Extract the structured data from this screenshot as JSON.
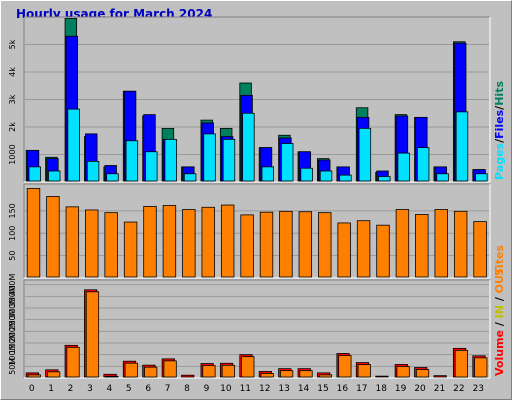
{
  "title": "Hourly usage for March 2024",
  "colors": {
    "background": "#c0c0c0",
    "plot": "#c0c0c0",
    "title": "#0000c0",
    "hits": "#00805c",
    "files": "#0000ff",
    "pages": "#00e0ff",
    "sites": "#ff8000",
    "kbin": "#c0c000",
    "kbout": "#ff8000",
    "volume": "#ff0000"
  },
  "legend": {
    "top": [
      {
        "text": "Pages",
        "color": "#00e0ff"
      },
      {
        "text": "/",
        "color": "#000000"
      },
      {
        "text": "Files",
        "color": "#0000ff"
      },
      {
        "text": "/",
        "color": "#000000"
      },
      {
        "text": "Hits",
        "color": "#00805c"
      }
    ],
    "middle": [
      {
        "text": "Sites",
        "color": "#ff8000"
      }
    ],
    "bottom": [
      {
        "text": "Volume",
        "color": "#ff0000"
      },
      {
        "text": " / ",
        "color": "#000000"
      },
      {
        "text": "IN",
        "color": "#c0c000"
      },
      {
        "text": " / ",
        "color": "#000000"
      },
      {
        "text": "OUT",
        "color": "#ff8000"
      }
    ]
  },
  "chart_data": [
    {
      "type": "bar",
      "name": "hits-files-pages",
      "categories": [
        "0",
        "1",
        "2",
        "3",
        "4",
        "5",
        "6",
        "7",
        "8",
        "9",
        "10",
        "11",
        "12",
        "13",
        "14",
        "15",
        "16",
        "17",
        "18",
        "19",
        "20",
        "21",
        "22",
        "23"
      ],
      "ylim": [
        0,
        6000
      ],
      "yticks": [
        {
          "value": 1000,
          "label": "1000"
        },
        {
          "value": 2000,
          "label": "2k"
        },
        {
          "value": 3000,
          "label": "3k"
        },
        {
          "value": 4000,
          "label": "4k"
        },
        {
          "value": 5000,
          "label": "5k"
        }
      ],
      "series": [
        {
          "name": "Hits",
          "values": [
            1150,
            900,
            5950,
            1650,
            550,
            3300,
            2400,
            1950,
            550,
            2250,
            1950,
            3600,
            1250,
            1700,
            1100,
            850,
            550,
            2700,
            350,
            2450,
            2350,
            550,
            5100,
            450
          ]
        },
        {
          "name": "Files",
          "values": [
            1150,
            850,
            5300,
            1750,
            600,
            3300,
            2450,
            1550,
            550,
            2150,
            1650,
            3150,
            1250,
            1600,
            1100,
            800,
            550,
            2350,
            400,
            2400,
            2350,
            550,
            5050,
            450
          ]
        },
        {
          "name": "Pages",
          "values": [
            550,
            400,
            2650,
            750,
            300,
            1500,
            1100,
            1550,
            300,
            1750,
            1550,
            2500,
            550,
            1400,
            500,
            400,
            250,
            1950,
            200,
            1050,
            1250,
            300,
            2550,
            300
          ]
        }
      ]
    },
    {
      "type": "bar",
      "name": "sites",
      "categories": [
        "0",
        "1",
        "2",
        "3",
        "4",
        "5",
        "6",
        "7",
        "8",
        "9",
        "10",
        "11",
        "12",
        "13",
        "14",
        "15",
        "16",
        "17",
        "18",
        "19",
        "20",
        "21",
        "22",
        "23"
      ],
      "ylim": [
        0,
        210
      ],
      "yticks": [
        {
          "value": 50,
          "label": "50"
        },
        {
          "value": 100,
          "label": "100"
        },
        {
          "value": 150,
          "label": "150"
        }
      ],
      "series": [
        {
          "name": "Sites",
          "values": [
            200,
            182,
            159,
            152,
            146,
            125,
            160,
            162,
            153,
            158,
            163,
            141,
            147,
            149,
            148,
            146,
            123,
            128,
            118,
            153,
            142,
            153,
            149,
            126
          ]
        }
      ]
    },
    {
      "type": "bar",
      "name": "volume",
      "categories": [
        "0",
        "1",
        "2",
        "3",
        "4",
        "5",
        "6",
        "7",
        "8",
        "9",
        "10",
        "11",
        "12",
        "13",
        "14",
        "15",
        "16",
        "17",
        "18",
        "19",
        "20",
        "21",
        "22",
        "23"
      ],
      "ylim": [
        0,
        420
      ],
      "yticks": [
        {
          "value": 50,
          "label": "50M"
        },
        {
          "value": 100,
          "label": "100M"
        },
        {
          "value": 150,
          "label": "150M"
        },
        {
          "value": 200,
          "label": "200M"
        },
        {
          "value": 250,
          "label": "250M"
        },
        {
          "value": 300,
          "label": "300M"
        },
        {
          "value": 350,
          "label": "350M"
        },
        {
          "value": 400,
          "label": "400M"
        }
      ],
      "series": [
        {
          "name": "Volume",
          "values": [
            22,
            35,
            140,
            378,
            16,
            72,
            55,
            82,
            12,
            62,
            63,
            100,
            28,
            40,
            40,
            22,
            105,
            66,
            8,
            58,
            45,
            10,
            127,
            95
          ]
        }
      ]
    }
  ]
}
